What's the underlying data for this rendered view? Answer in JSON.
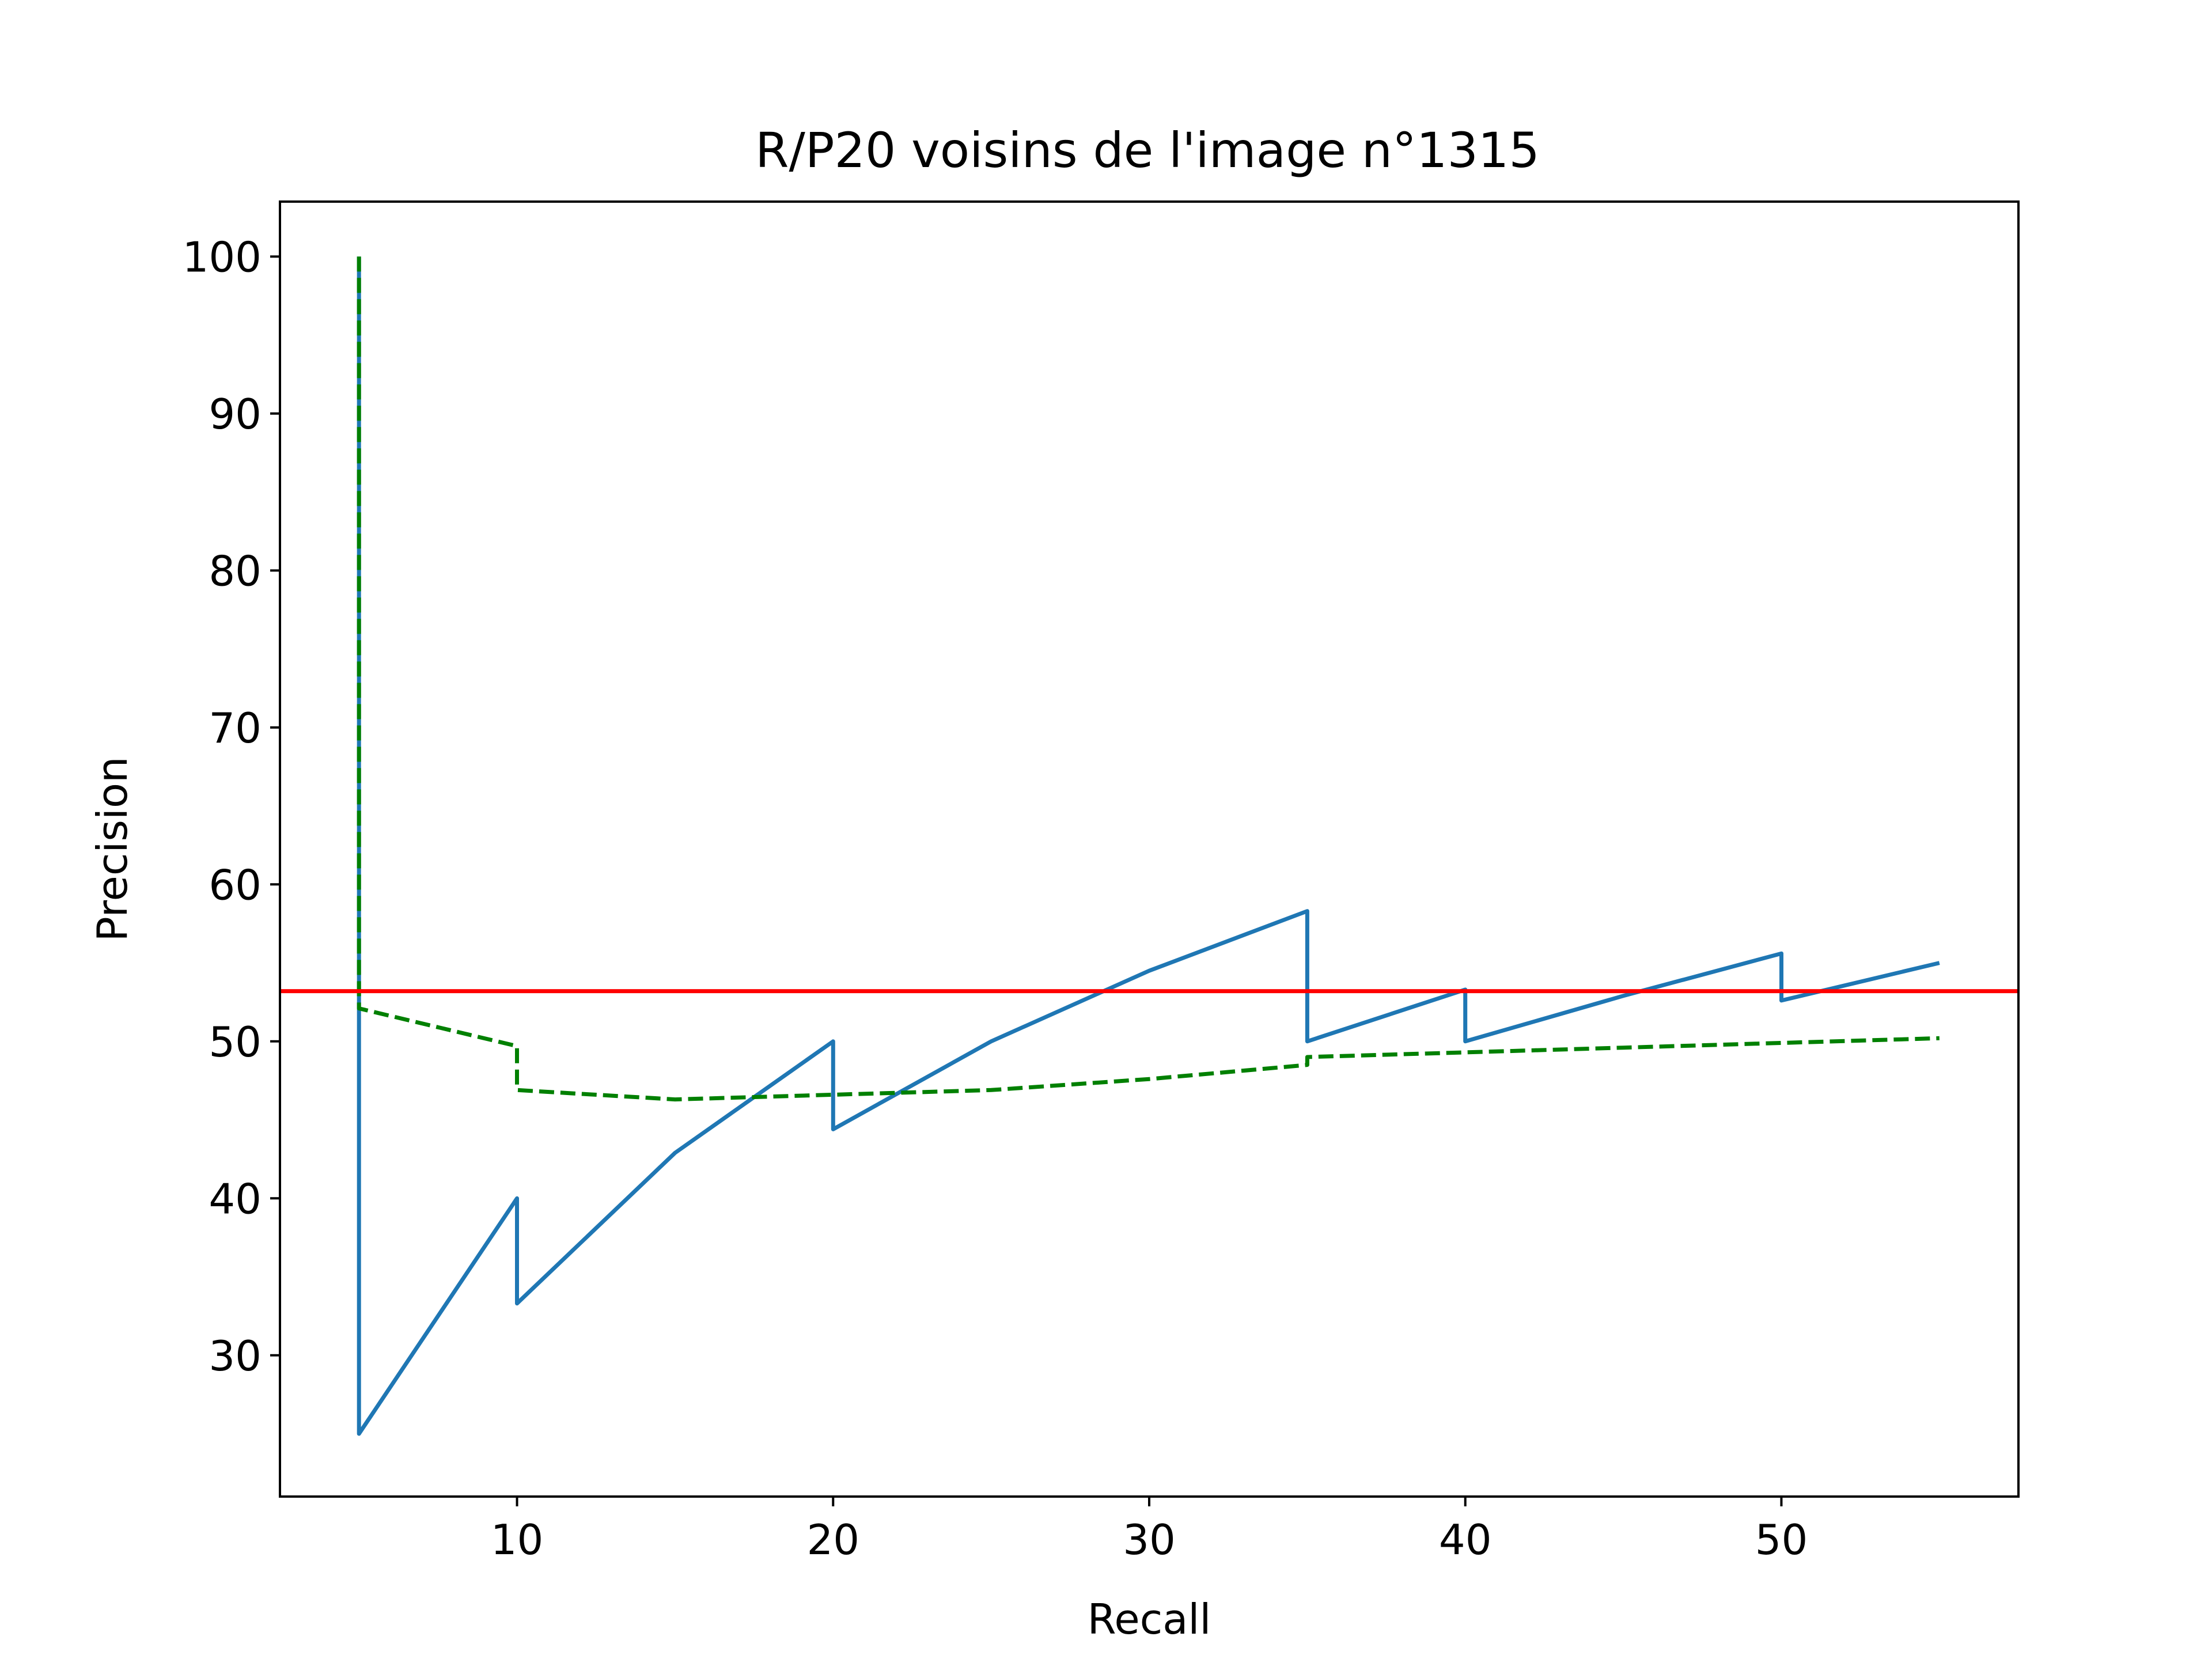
{
  "chart_data": {
    "type": "line",
    "title": "R/P20 voisins de l'image n°1315",
    "xlabel": "Recall",
    "ylabel": "Precision",
    "xlim": [
      2.5,
      57.5
    ],
    "ylim": [
      21,
      103.5
    ],
    "xticks": [
      10,
      20,
      30,
      40,
      50
    ],
    "yticks": [
      30,
      40,
      50,
      60,
      70,
      80,
      90,
      100
    ],
    "grid": false,
    "colors": {
      "solid": "#1f77b4",
      "dashed": "#008000",
      "hline": "#ff0000",
      "frame": "#000000"
    },
    "series": [
      {
        "style": "solid",
        "color": "#1f77b4",
        "x": [
          5,
          5,
          5,
          10,
          10,
          15,
          20,
          20,
          25,
          30,
          35,
          35,
          40,
          40,
          45,
          50,
          50,
          55
        ],
        "y": [
          100,
          50,
          25,
          40,
          33.3,
          42.9,
          50,
          44.4,
          50,
          54.5,
          58.3,
          50,
          53.3,
          50,
          52.9,
          55.6,
          52.6,
          55
        ]
      },
      {
        "style": "dashed",
        "color": "#008000",
        "x": [
          5,
          5,
          10,
          10,
          15,
          20,
          25,
          30,
          35,
          35,
          40,
          45,
          50,
          55
        ],
        "y": [
          100,
          52.1,
          49.7,
          46.9,
          46.3,
          46.6,
          46.9,
          47.6,
          48.5,
          49.0,
          49.3,
          49.6,
          49.9,
          50.2
        ]
      },
      {
        "style": "hline",
        "color": "#ff0000",
        "y": 53.2
      }
    ]
  }
}
